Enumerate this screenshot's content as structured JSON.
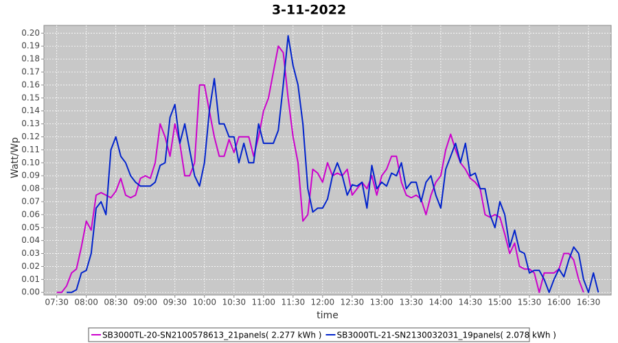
{
  "chart_data": {
    "type": "line",
    "title": "3-11-2022",
    "x_label": "time",
    "y_label": "Watt/Wp",
    "x": [
      "07:30",
      "07:35",
      "07:40",
      "07:45",
      "07:50",
      "07:55",
      "08:00",
      "08:05",
      "08:10",
      "08:15",
      "08:20",
      "08:25",
      "08:30",
      "08:35",
      "08:40",
      "08:45",
      "08:50",
      "08:55",
      "09:00",
      "09:05",
      "09:10",
      "09:15",
      "09:20",
      "09:25",
      "09:30",
      "09:35",
      "09:40",
      "09:45",
      "09:50",
      "09:55",
      "10:00",
      "10:05",
      "10:10",
      "10:15",
      "10:20",
      "10:25",
      "10:30",
      "10:35",
      "10:40",
      "10:45",
      "10:50",
      "10:55",
      "11:00",
      "11:05",
      "11:10",
      "11:15",
      "11:20",
      "11:25",
      "11:30",
      "11:35",
      "11:40",
      "11:45",
      "11:50",
      "11:55",
      "12:00",
      "12:05",
      "12:10",
      "12:15",
      "12:20",
      "12:25",
      "12:30",
      "12:35",
      "12:40",
      "12:45",
      "12:50",
      "12:55",
      "13:00",
      "13:05",
      "13:10",
      "13:15",
      "13:20",
      "13:25",
      "13:30",
      "13:35",
      "13:40",
      "13:45",
      "13:50",
      "13:55",
      "14:00",
      "14:05",
      "14:10",
      "14:15",
      "14:20",
      "14:25",
      "14:30",
      "14:35",
      "14:40",
      "14:45",
      "14:50",
      "14:55",
      "15:00",
      "15:05",
      "15:10",
      "15:15",
      "15:20",
      "15:25",
      "15:30",
      "15:35",
      "15:40",
      "15:45",
      "15:50",
      "15:55",
      "16:00",
      "16:05",
      "16:10",
      "16:15",
      "16:20",
      "16:25",
      "16:30",
      "16:35",
      "16:40"
    ],
    "series": [
      {
        "name": "SB3000TL-20-SN2100578613_21panels( 2.277 kWh )",
        "color": "#cc00cc",
        "values": [
          0,
          0,
          0.005,
          0.015,
          0.018,
          0.035,
          0.055,
          0.048,
          0.075,
          0.077,
          0.075,
          0.073,
          0.078,
          0.088,
          0.075,
          0.073,
          0.075,
          0.088,
          0.09,
          0.088,
          0.1,
          0.13,
          0.12,
          0.105,
          0.13,
          0.115,
          0.09,
          0.09,
          0.1,
          0.16,
          0.16,
          0.14,
          0.12,
          0.105,
          0.105,
          0.118,
          0.108,
          0.12,
          0.12,
          0.12,
          0.105,
          0.12,
          0.14,
          0.15,
          0.17,
          0.19,
          0.185,
          0.15,
          0.12,
          0.1,
          0.055,
          0.06,
          0.095,
          0.092,
          0.085,
          0.1,
          0.09,
          0.092,
          0.09,
          0.095,
          0.075,
          0.08,
          0.085,
          0.08,
          0.09,
          0.075,
          0.09,
          0.095,
          0.105,
          0.105,
          0.085,
          0.075,
          0.073,
          0.075,
          0.072,
          0.06,
          0.075,
          0.085,
          0.09,
          0.11,
          0.122,
          0.11,
          0.1,
          0.095,
          0.088,
          0.085,
          0.08,
          0.06,
          0.058,
          0.06,
          0.058,
          0.045,
          0.03,
          0.038,
          0.02,
          0.018,
          0.018,
          0.015,
          0,
          0.015,
          0.015,
          0.015,
          0.018,
          0.03,
          0.03,
          0.025,
          0.01,
          0,
          null,
          null,
          null
        ]
      },
      {
        "name": "SB3000TL-21-SN2130032031_19panels( 2.078 kWh )",
        "color": "#0022cc",
        "values": [
          null,
          null,
          0,
          0,
          0.002,
          0.015,
          0.017,
          0.03,
          0.065,
          0.07,
          0.06,
          0.11,
          0.12,
          0.105,
          0.1,
          0.09,
          0.085,
          0.082,
          0.082,
          0.082,
          0.085,
          0.098,
          0.1,
          0.135,
          0.145,
          0.115,
          0.13,
          0.11,
          0.09,
          0.082,
          0.1,
          0.14,
          0.165,
          0.13,
          0.13,
          0.12,
          0.12,
          0.1,
          0.115,
          0.1,
          0.1,
          0.13,
          0.115,
          0.115,
          0.115,
          0.125,
          0.16,
          0.198,
          0.175,
          0.16,
          0.13,
          0.08,
          0.062,
          0.065,
          0.065,
          0.072,
          0.09,
          0.1,
          0.09,
          0.075,
          0.083,
          0.082,
          0.085,
          0.065,
          0.098,
          0.08,
          0.085,
          0.082,
          0.092,
          0.09,
          0.1,
          0.08,
          0.085,
          0.085,
          0.07,
          0.085,
          0.09,
          0.075,
          0.065,
          0.095,
          0.105,
          0.115,
          0.1,
          0.115,
          0.09,
          0.092,
          0.08,
          0.08,
          0.06,
          0.05,
          0.07,
          0.06,
          0.035,
          0.048,
          0.032,
          0.03,
          0.015,
          0.017,
          0.017,
          0.01,
          0,
          0.01,
          0.018,
          0.012,
          0.025,
          0.035,
          0.03,
          0.01,
          0,
          0.015,
          0
        ]
      }
    ],
    "xlim": [
      "07:17",
      "16:53"
    ],
    "xticks": [
      "07:30",
      "08:00",
      "08:30",
      "09:00",
      "09:30",
      "10:00",
      "10:30",
      "11:00",
      "11:30",
      "12:00",
      "12:30",
      "13:00",
      "13:30",
      "14:00",
      "14:30",
      "15:00",
      "15:30",
      "16:00",
      "16:30"
    ],
    "ylim": [
      -0.002,
      0.206
    ],
    "yticks": [
      {
        "value": 0,
        "label": "0.00"
      },
      {
        "value": 0.01,
        "label": "0.01"
      },
      {
        "value": 0.02,
        "label": "0.02"
      },
      {
        "value": 0.03,
        "label": "0.03"
      },
      {
        "value": 0.04,
        "label": "0.04"
      },
      {
        "value": 0.05,
        "label": "0.05"
      },
      {
        "value": 0.06,
        "label": "0.06"
      },
      {
        "value": 0.07,
        "label": "0.07"
      },
      {
        "value": 0.08,
        "label": "0.08"
      },
      {
        "value": 0.09,
        "label": "0.09"
      },
      {
        "value": 0.1,
        "label": "0.10"
      },
      {
        "value": 0.11,
        "label": "0.11"
      },
      {
        "value": 0.12,
        "label": "0.12"
      },
      {
        "value": 0.13,
        "label": "0.13"
      },
      {
        "value": 0.14,
        "label": "0.14"
      },
      {
        "value": 0.15,
        "label": "0.15"
      },
      {
        "value": 0.16,
        "label": "0.16"
      },
      {
        "value": 0.17,
        "label": "0.17"
      },
      {
        "value": 0.18,
        "label": "0.18"
      },
      {
        "value": 0.19,
        "label": "0.19"
      },
      {
        "value": 0.2,
        "label": "0.20"
      }
    ],
    "grid": true,
    "legend": "bottom"
  }
}
